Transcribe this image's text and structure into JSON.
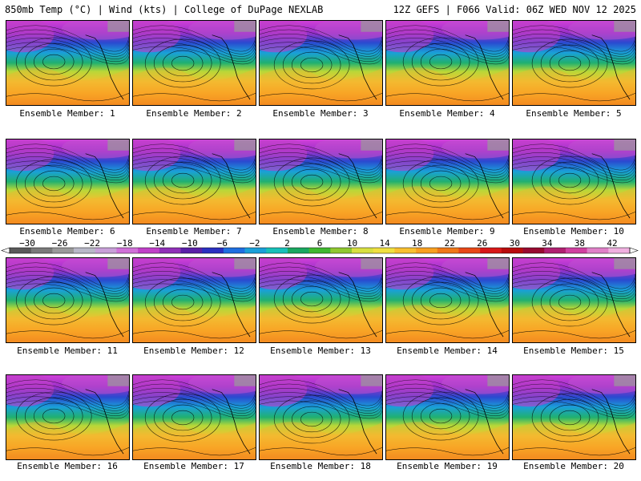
{
  "header": {
    "title_left": "850mb Temp (°C) | Wind (kts) | College of DuPage NEXLAB",
    "title_right": "12Z GEFS | F066 Valid: 06Z WED NOV 12 2025"
  },
  "colorbar": {
    "labels": [
      "−30",
      "−26",
      "−22",
      "−18",
      "−14",
      "−10",
      "−6",
      "−2",
      "2",
      "6",
      "10",
      "14",
      "18",
      "22",
      "26",
      "30",
      "34",
      "38",
      "42"
    ],
    "colors": [
      "#5a5a5a",
      "#7a7a7a",
      "#9a9a9a",
      "#b8b8c8",
      "#c8a0d8",
      "#d070d8",
      "#c040c8",
      "#9030b8",
      "#5a20a8",
      "#2a30c0",
      "#1f6fe0",
      "#1aa0d8",
      "#18c0b8",
      "#1aa860",
      "#40b830",
      "#90c830",
      "#d8e040",
      "#f0e040",
      "#f8c030",
      "#f8a020",
      "#f07818",
      "#e84818",
      "#d81818",
      "#b80c0c",
      "#980a30",
      "#b02070",
      "#d040a0",
      "#e080c8",
      "#f0b0e0"
    ],
    "unit": "°C"
  },
  "members": [
    {
      "label": "Ensemble Member: 1"
    },
    {
      "label": "Ensemble Member: 2"
    },
    {
      "label": "Ensemble Member: 3"
    },
    {
      "label": "Ensemble Member: 4"
    },
    {
      "label": "Ensemble Member: 5"
    },
    {
      "label": "Ensemble Member: 6"
    },
    {
      "label": "Ensemble Member: 7"
    },
    {
      "label": "Ensemble Member: 8"
    },
    {
      "label": "Ensemble Member: 9"
    },
    {
      "label": "Ensemble Member: 10"
    },
    {
      "label": "Ensemble Member: 11"
    },
    {
      "label": "Ensemble Member: 12"
    },
    {
      "label": "Ensemble Member: 13"
    },
    {
      "label": "Ensemble Member: 14"
    },
    {
      "label": "Ensemble Member: 15"
    },
    {
      "label": "Ensemble Member: 16"
    },
    {
      "label": "Ensemble Member: 17"
    },
    {
      "label": "Ensemble Member: 18"
    },
    {
      "label": "Ensemble Member: 19"
    },
    {
      "label": "Ensemble Member: 20"
    }
  ]
}
